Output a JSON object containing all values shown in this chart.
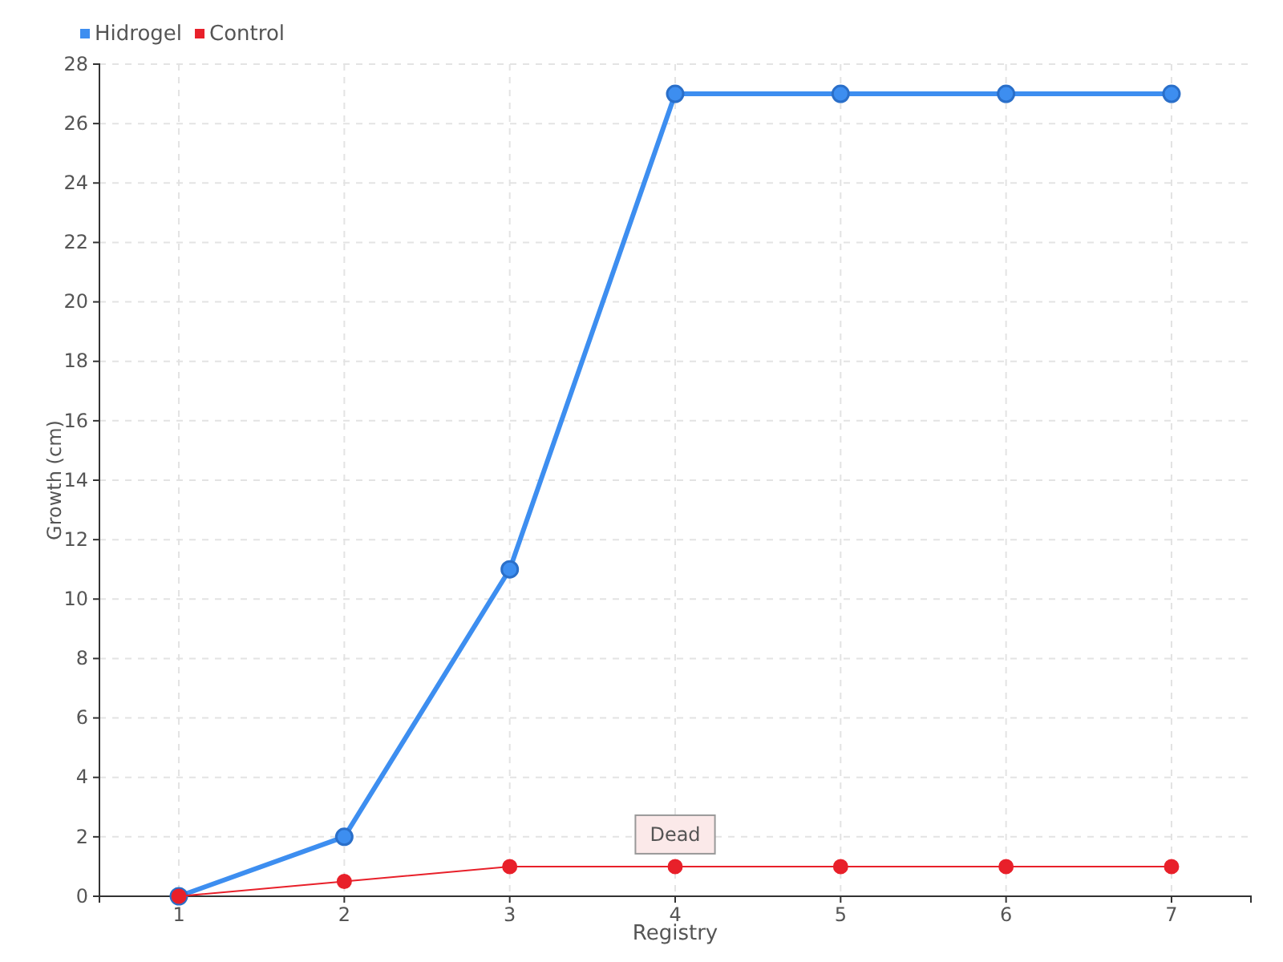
{
  "chart_data": {
    "type": "line",
    "xlabel": "Registry",
    "ylabel": "Growth (cm)",
    "categories": [
      "1",
      "2",
      "3",
      "4",
      "5",
      "6",
      "7"
    ],
    "series": [
      {
        "name": "Hidrogel",
        "color": "#3d8ef0",
        "values": [
          0,
          2,
          11,
          27,
          27,
          27,
          27
        ]
      },
      {
        "name": "Control",
        "color": "#e8202a",
        "values": [
          0,
          0.5,
          1,
          1,
          1,
          1,
          1
        ]
      }
    ],
    "ylim": [
      0,
      28
    ],
    "yticks": [
      0,
      2,
      4,
      6,
      8,
      10,
      12,
      14,
      16,
      18,
      20,
      22,
      24,
      26,
      28
    ],
    "grid": true,
    "legend": "top left",
    "marker": "circle",
    "line_style": "solid",
    "annotations": [
      {
        "text": "Dead",
        "x": "4",
        "y": 1
      }
    ]
  }
}
